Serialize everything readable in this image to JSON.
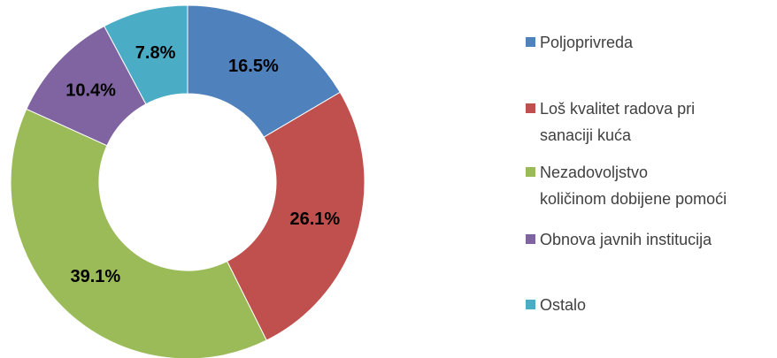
{
  "chart_data": {
    "type": "donut",
    "categories": [
      "Poljoprivreda",
      "Loš kvalitet radova pri\nsanaciji kuća",
      "Nezadovoljstvo\nkoličinom dobijene pomoći",
      "Obnova javnih institucija",
      "Ostalo"
    ],
    "values": [
      16.5,
      26.1,
      39.1,
      10.4,
      7.8
    ],
    "value_labels": [
      "16.5%",
      "26.1%",
      "39.1%",
      "10.4%",
      "7.8%"
    ],
    "colors": [
      "#4f81bd",
      "#c0504d",
      "#9bbb59",
      "#8064a2",
      "#4bacc6"
    ],
    "legend": "right"
  }
}
